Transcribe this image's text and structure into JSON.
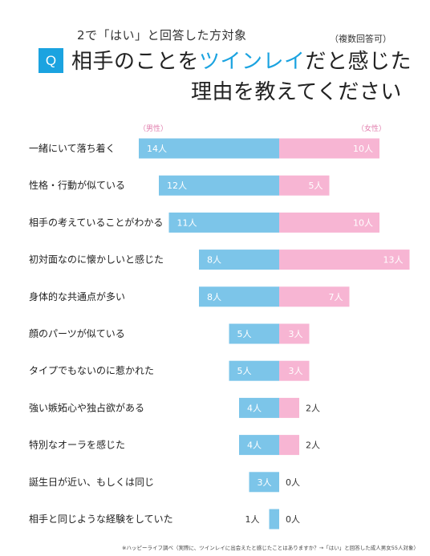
{
  "header": {
    "subtitle": "2で「はい」と回答した方対象",
    "note": "（複数回答可）",
    "badge": "Q",
    "title_line1_pre": "相手のことを",
    "title_line1_highlight": "ツインレイ",
    "title_line1_post": "だと感じた",
    "title_line2": "理由を教えてください"
  },
  "colors": {
    "male": "#7cc5e9",
    "female": "#f7b5d3",
    "accent": "#1ba3e0",
    "legend": "#e27fae"
  },
  "chart_data": {
    "type": "bar",
    "orientation": "horizontal-diverging",
    "legend": [
      "（男性）",
      "（女性）"
    ],
    "unit": "人",
    "categories": [
      "一緒にいて落ち着く",
      "性格・行動が似ている",
      "相手の考えていることがわかる",
      "初対面なのに懐かしいと感じた",
      "身体的な共通点が多い",
      "顔のパーツが似ている",
      "タイプでもないのに惹かれた",
      "強い嫉妬心や独占欲がある",
      "特別なオーラを感じた",
      "誕生日が近い、もしくは同じ",
      "相手と同じような経験をしていた"
    ],
    "series": [
      {
        "name": "（男性）",
        "values": [
          14,
          12,
          11,
          8,
          8,
          5,
          5,
          4,
          4,
          3,
          1
        ]
      },
      {
        "name": "（女性）",
        "values": [
          10,
          5,
          10,
          13,
          7,
          3,
          3,
          2,
          2,
          0,
          0
        ]
      }
    ]
  },
  "footnote": "※ハッピーライフ調べ（実際に、ツインレイに出会えたと感じたことはありますか？→「はい」と回答した成人男女55人対象）"
}
